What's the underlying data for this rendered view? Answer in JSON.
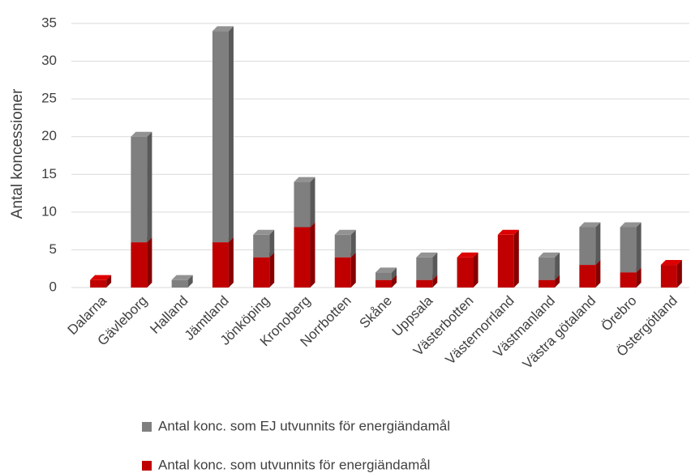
{
  "chart_data": {
    "type": "stacked_bar",
    "y_label": "Antal koncessioner",
    "categories": [
      "Dalarna",
      "Gävleborg",
      "Halland",
      "Jämtland",
      "Jönköping",
      "Kronoberg",
      "Norrbotten",
      "Skåne",
      "Uppsala",
      "Västerbotten",
      "Västernorrland",
      "Västmanland",
      "Västra götaland",
      "Örebro",
      "Östergötland"
    ],
    "series": [
      {
        "name": "Antal konc. som EJ utvunnits för energiändamål",
        "color": "#7f7f7f",
        "values": [
          0,
          14,
          1,
          28,
          3,
          6,
          3,
          1,
          3,
          0,
          0,
          3,
          5,
          6,
          0
        ]
      },
      {
        "name": "Antal konc. som utvunnits för energiändamål",
        "color": "#c00000",
        "values": [
          1,
          6,
          0,
          6,
          4,
          8,
          4,
          1,
          1,
          4,
          7,
          1,
          3,
          2,
          3
        ]
      }
    ],
    "ylim": [
      0,
      35
    ],
    "yticks": [
      0,
      5,
      10,
      15,
      20,
      25,
      30,
      35
    ],
    "grid": true
  }
}
